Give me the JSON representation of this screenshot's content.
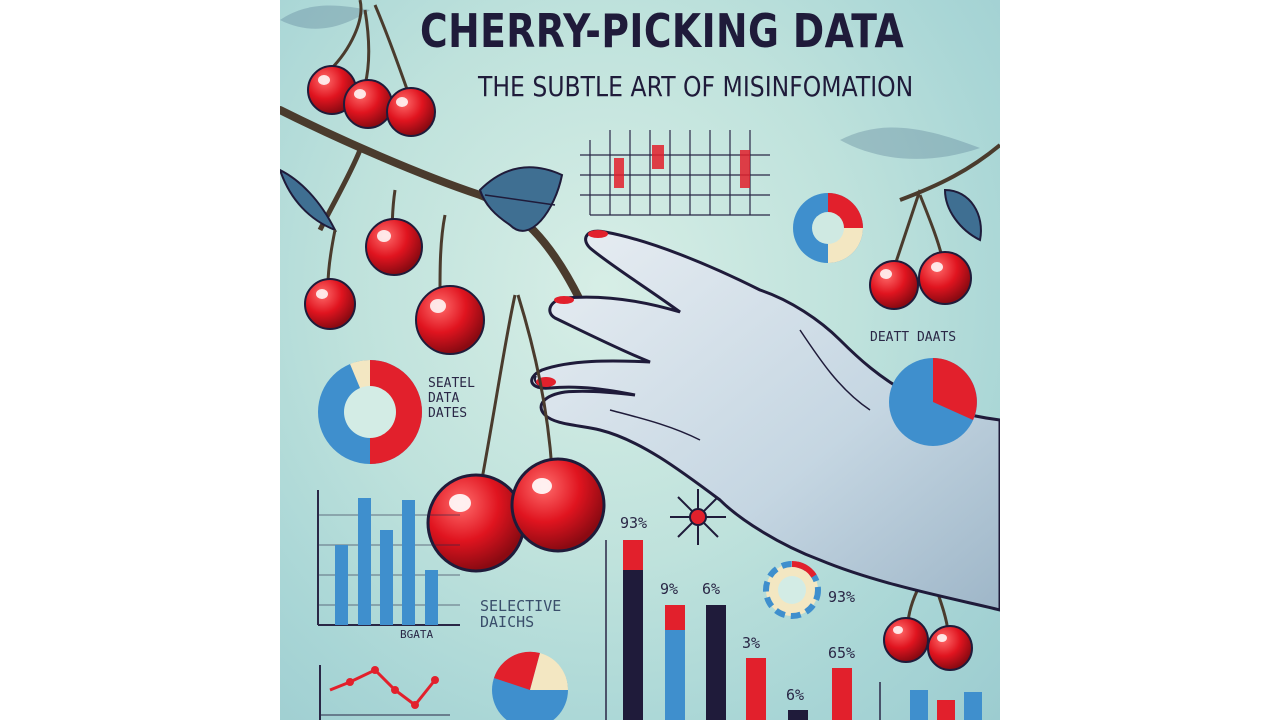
{
  "poster": {
    "title": "CHERRY-PICKING DATA",
    "subtitle": "THE SUBTLE ART OF MISINFOMATION"
  },
  "labels": {
    "right_top": "DEATT DAATS",
    "left_donut": "SEATEL\nDATA\nDATES",
    "bar_left_caption": "BGATA",
    "selective": "SELECTIVE\nDAICHS",
    "pct_93": "93%",
    "pct_9_1": "9%",
    "pct_6_1": "6%",
    "pct_3": "3%",
    "pct_65": "65%",
    "pct_6_2": "6%",
    "pct_93_right": "93%"
  },
  "colors": {
    "red": "#e2202c",
    "blue": "#3f8fcd",
    "navy": "#1f1b3a",
    "cream": "#f3e7c2"
  }
}
